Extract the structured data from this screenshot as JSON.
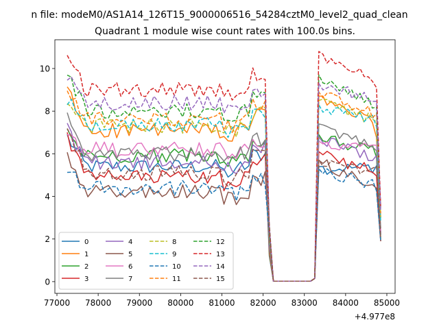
{
  "chart_data": {
    "type": "line",
    "suptitle": "n file: modeM0/AS1A14_126T15_9000006516_54284cztM0_level2_quad_clean",
    "title": "Quadrant 1 module wise count rates with 100.0s bins.",
    "xlabel": "",
    "ylabel": "",
    "x_offset_label": "+4.977e8",
    "xlim": [
      76950,
      85200
    ],
    "ylim": [
      -0.55,
      11.35
    ],
    "xticks": [
      77000,
      78000,
      79000,
      80000,
      81000,
      82000,
      83000,
      84000,
      85000
    ],
    "yticks": [
      0,
      2,
      4,
      6,
      8,
      10
    ],
    "x_start": 77250,
    "x_step": 100,
    "n_points": 77,
    "segments": [
      {
        "from": 77250,
        "to": 82150,
        "kind": "data"
      },
      {
        "from": 82150,
        "to": 83350,
        "kind": "gap"
      },
      {
        "from": 83350,
        "to": 84850,
        "kind": "data"
      }
    ],
    "grid": false,
    "legend_location": "lower-left",
    "legend_columns": 4,
    "series": [
      {
        "name": "0",
        "color": "#1f77b4",
        "dash": "solid",
        "level": 5.4,
        "start": 6.8,
        "peak": 5.3,
        "end": 2.2
      },
      {
        "name": "1",
        "color": "#ff7f0e",
        "dash": "solid",
        "level": 7.1,
        "start": 9.0,
        "peak": 8.6,
        "end": 3.0
      },
      {
        "name": "2",
        "color": "#2ca02c",
        "dash": "solid",
        "level": 5.9,
        "start": 7.0,
        "peak": 6.8,
        "end": 2.0
      },
      {
        "name": "3",
        "color": "#d62728",
        "dash": "solid",
        "level": 4.9,
        "start": 6.8,
        "peak": 6.0,
        "end": 1.9
      },
      {
        "name": "4",
        "color": "#9467bd",
        "dash": "solid",
        "level": 5.6,
        "start": 7.2,
        "peak": 6.7,
        "end": 2.3
      },
      {
        "name": "5",
        "color": "#8c564b",
        "dash": "solid",
        "level": 4.2,
        "start": 5.8,
        "peak": 5.6,
        "end": 1.9
      },
      {
        "name": "6",
        "color": "#e377c2",
        "dash": "solid",
        "level": 6.2,
        "start": 6.6,
        "peak": 6.5,
        "end": 2.4
      },
      {
        "name": "7",
        "color": "#7f7f7f",
        "dash": "solid",
        "level": 6.0,
        "start": 7.6,
        "peak": 7.3,
        "end": 2.5
      },
      {
        "name": "8",
        "color": "#bcbd22",
        "dash": "dashed",
        "level": 7.3,
        "start": 8.7,
        "peak": 8.4,
        "end": 3.0
      },
      {
        "name": "9",
        "color": "#17becf",
        "dash": "dashed",
        "level": 7.4,
        "start": 8.6,
        "peak": 8.2,
        "end": 2.8
      },
      {
        "name": "10",
        "color": "#1f77b4",
        "dash": "dashed",
        "level": 4.4,
        "start": 5.4,
        "peak": 5.2,
        "end": 1.9
      },
      {
        "name": "11",
        "color": "#ff7f0e",
        "dash": "dashed",
        "level": 7.6,
        "start": 9.2,
        "peak": 8.8,
        "end": 3.2
      },
      {
        "name": "12",
        "color": "#2ca02c",
        "dash": "dashed",
        "level": 8.0,
        "start": 9.9,
        "peak": 9.6,
        "end": 3.4
      },
      {
        "name": "13",
        "color": "#d62728",
        "dash": "dashed",
        "level": 9.0,
        "start": 10.8,
        "peak": 10.7,
        "end": 3.5
      },
      {
        "name": "14",
        "color": "#9467bd",
        "dash": "dashed",
        "level": 8.4,
        "start": 9.6,
        "peak": 9.2,
        "end": 3.3
      },
      {
        "name": "15",
        "color": "#8c564b",
        "dash": "dashed",
        "level": 5.1,
        "start": 7.3,
        "peak": 5.6,
        "end": 2.1
      }
    ]
  }
}
